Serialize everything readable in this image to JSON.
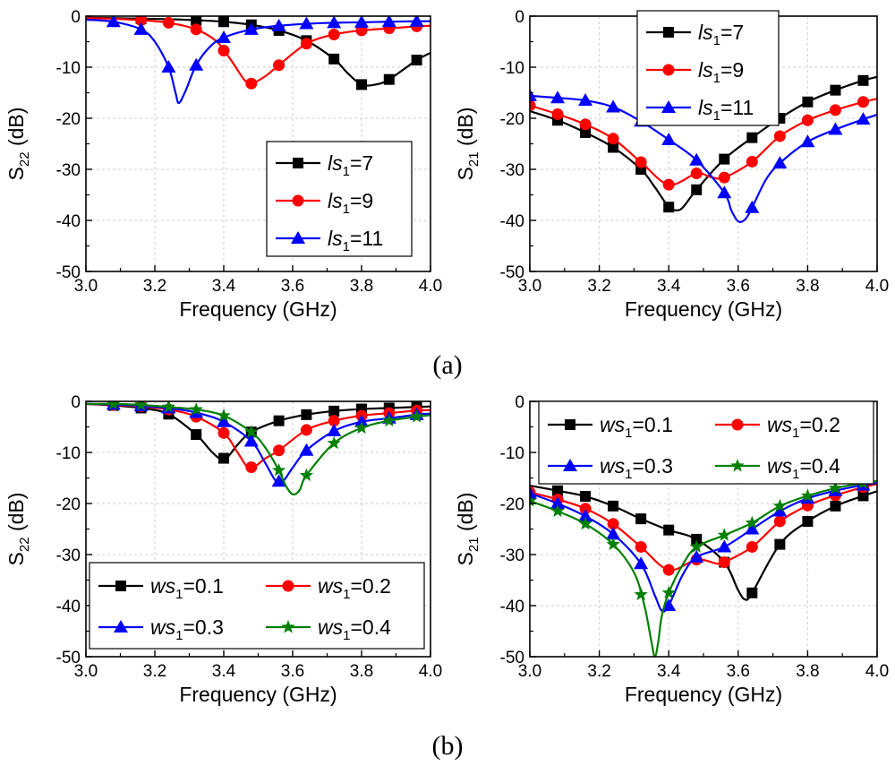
{
  "figure": {
    "caption_a": "(a)",
    "caption_b": "(b)"
  },
  "chart_data": [
    {
      "id": "a-left",
      "type": "line",
      "title": "",
      "xlabel": "Frequency (GHz)",
      "ylabel": "S22 (dB)",
      "ylabel_main": "S",
      "ylabel_sub": "22",
      "ylabel_unit": " (dB)",
      "xlim": [
        3.0,
        4.0
      ],
      "ylim": [
        -50,
        0
      ],
      "xticks": [
        "3.0",
        "3.2",
        "3.4",
        "3.6",
        "3.8",
        "4.0"
      ],
      "yticks": [
        "0",
        "-10",
        "-20",
        "-30",
        "-40",
        "-50"
      ],
      "grid": true,
      "legend_position": "right",
      "legend_layout": "column",
      "series": [
        {
          "name": "ls1=7",
          "label_var": "ls",
          "label_sub": "1",
          "label_val": "=7",
          "color": "#000000",
          "marker": "square",
          "x": [
            3.0,
            3.08,
            3.16,
            3.24,
            3.32,
            3.4,
            3.48,
            3.56,
            3.64,
            3.72,
            3.76,
            3.8,
            3.84,
            3.88,
            3.96,
            4.0
          ],
          "y": [
            -0.3,
            -0.4,
            -0.5,
            -0.6,
            -0.8,
            -1.1,
            -1.7,
            -2.8,
            -4.8,
            -8.4,
            -11.2,
            -13.4,
            -13.4,
            -12.4,
            -8.6,
            -7.2
          ],
          "markers_x": [
            3.16,
            3.32,
            3.4,
            3.48,
            3.56,
            3.64,
            3.72,
            3.8,
            3.88,
            3.96
          ]
        },
        {
          "name": "ls1=9",
          "label_var": "ls",
          "label_sub": "1",
          "label_val": "=9",
          "color": "#ff0000",
          "marker": "circle",
          "x": [
            3.0,
            3.08,
            3.16,
            3.24,
            3.32,
            3.38,
            3.42,
            3.46,
            3.48,
            3.52,
            3.56,
            3.64,
            3.72,
            3.8,
            3.88,
            3.96,
            4.0
          ],
          "y": [
            -0.4,
            -0.5,
            -0.8,
            -1.3,
            -2.6,
            -5.0,
            -8.5,
            -12.5,
            -13.2,
            -11.8,
            -9.6,
            -5.4,
            -3.6,
            -2.8,
            -2.4,
            -2.0,
            -1.9
          ],
          "markers_x": [
            3.16,
            3.24,
            3.32,
            3.4,
            3.48,
            3.56,
            3.64,
            3.72,
            3.8,
            3.88,
            3.96
          ]
        },
        {
          "name": "ls1=11",
          "label_var": "ls",
          "label_sub": "1",
          "label_val": "=11",
          "color": "#0000ff",
          "marker": "triangle",
          "x": [
            3.0,
            3.08,
            3.16,
            3.2,
            3.24,
            3.26,
            3.27,
            3.29,
            3.32,
            3.36,
            3.4,
            3.48,
            3.56,
            3.64,
            3.72,
            3.8,
            3.88,
            3.96,
            4.0
          ],
          "y": [
            -0.7,
            -1.1,
            -2.6,
            -5.0,
            -10.0,
            -15.0,
            -17.0,
            -14.5,
            -9.6,
            -6.0,
            -4.2,
            -2.6,
            -1.9,
            -1.5,
            -1.3,
            -1.2,
            -1.1,
            -1.0,
            -1.0
          ],
          "markers_x": [
            3.08,
            3.16,
            3.24,
            3.32,
            3.4,
            3.48,
            3.56,
            3.64,
            3.72,
            3.8,
            3.88,
            3.96
          ]
        }
      ]
    },
    {
      "id": "a-right",
      "type": "line",
      "title": "",
      "xlabel": "Frequency (GHz)",
      "ylabel": "S21 (dB)",
      "ylabel_main": "S",
      "ylabel_sub": "21",
      "ylabel_unit": " (dB)",
      "xlim": [
        3.0,
        4.0
      ],
      "ylim": [
        -50,
        0
      ],
      "xticks": [
        "3.0",
        "3.2",
        "3.4",
        "3.6",
        "3.8",
        "4.0"
      ],
      "yticks": [
        "0",
        "-10",
        "-20",
        "-30",
        "-40",
        "-50"
      ],
      "grid": true,
      "legend_position": "top-left",
      "legend_layout": "column",
      "series": [
        {
          "name": "ls1=7",
          "label_var": "ls",
          "label_sub": "1",
          "label_val": "=7",
          "color": "#000000",
          "marker": "square",
          "x": [
            3.0,
            3.08,
            3.16,
            3.24,
            3.32,
            3.36,
            3.4,
            3.42,
            3.44,
            3.48,
            3.56,
            3.64,
            3.72,
            3.8,
            3.88,
            3.96,
            4.0
          ],
          "y": [
            -18.6,
            -20.4,
            -22.8,
            -25.7,
            -30.0,
            -33.5,
            -37.4,
            -38.0,
            -37.5,
            -34.0,
            -28.0,
            -23.8,
            -20.0,
            -16.8,
            -14.5,
            -12.6,
            -11.9
          ],
          "markers_x": [
            3.08,
            3.16,
            3.24,
            3.32,
            3.4,
            3.48,
            3.56,
            3.64,
            3.72,
            3.8,
            3.88,
            3.96
          ]
        },
        {
          "name": "ls1=9",
          "label_var": "ls",
          "label_sub": "1",
          "label_val": "=9",
          "color": "#ff0000",
          "marker": "circle",
          "x": [
            3.0,
            3.08,
            3.16,
            3.24,
            3.32,
            3.4,
            3.48,
            3.52,
            3.56,
            3.64,
            3.72,
            3.8,
            3.88,
            3.96,
            4.0
          ],
          "y": [
            -17.5,
            -19.2,
            -21.2,
            -24.0,
            -28.6,
            -33.0,
            -30.8,
            -31.5,
            -31.6,
            -28.5,
            -23.5,
            -20.4,
            -18.4,
            -16.8,
            -16.2
          ],
          "markers_x": [
            3.0,
            3.08,
            3.16,
            3.24,
            3.32,
            3.4,
            3.48,
            3.56,
            3.64,
            3.72,
            3.8,
            3.88,
            3.96
          ]
        },
        {
          "name": "ls1=11",
          "label_var": "ls",
          "label_sub": "1",
          "label_val": "=11",
          "color": "#0000ff",
          "marker": "triangle",
          "x": [
            3.0,
            3.08,
            3.16,
            3.24,
            3.32,
            3.4,
            3.48,
            3.56,
            3.58,
            3.6,
            3.62,
            3.64,
            3.68,
            3.72,
            3.8,
            3.88,
            3.96,
            4.0
          ],
          "y": [
            -15.6,
            -16.0,
            -16.5,
            -17.8,
            -20.6,
            -24.2,
            -28.2,
            -34.6,
            -38.0,
            -40.2,
            -39.8,
            -37.5,
            -32.0,
            -28.8,
            -24.6,
            -22.2,
            -20.2,
            -19.3
          ],
          "markers_x": [
            3.0,
            3.08,
            3.16,
            3.24,
            3.32,
            3.4,
            3.48,
            3.56,
            3.64,
            3.72,
            3.8,
            3.88,
            3.96
          ]
        }
      ]
    },
    {
      "id": "b-left",
      "type": "line",
      "title": "",
      "xlabel": "Frequency (GHz)",
      "ylabel": "S22 (dB)",
      "ylabel_main": "S",
      "ylabel_sub": "22",
      "ylabel_unit": " (dB)",
      "xlim": [
        3.0,
        4.0
      ],
      "ylim": [
        -50,
        0
      ],
      "xticks": [
        "3.0",
        "3.2",
        "3.4",
        "3.6",
        "3.8",
        "4.0"
      ],
      "yticks": [
        "0",
        "-10",
        "-20",
        "-30",
        "-40",
        "-50"
      ],
      "grid": true,
      "legend_position": "bottom",
      "legend_layout": "grid-2col",
      "series": [
        {
          "name": "ws1=0.1",
          "label_var": "ws",
          "label_sub": "1",
          "label_val": "=0.1",
          "color": "#000000",
          "marker": "square",
          "x": [
            3.0,
            3.08,
            3.16,
            3.24,
            3.32,
            3.36,
            3.39,
            3.41,
            3.44,
            3.48,
            3.56,
            3.64,
            3.72,
            3.8,
            3.88,
            3.96,
            4.0
          ],
          "y": [
            -0.5,
            -0.8,
            -1.3,
            -2.5,
            -6.5,
            -9.5,
            -11.3,
            -11.0,
            -8.5,
            -6.0,
            -3.8,
            -2.6,
            -1.9,
            -1.5,
            -1.3,
            -1.1,
            -1.0
          ],
          "markers_x": [
            3.08,
            3.16,
            3.24,
            3.32,
            3.4,
            3.48,
            3.56,
            3.64,
            3.72,
            3.8,
            3.88,
            3.96
          ]
        },
        {
          "name": "ws1=0.2",
          "label_var": "ws",
          "label_sub": "1",
          "label_val": "=0.2",
          "color": "#ff0000",
          "marker": "circle",
          "x": [
            3.0,
            3.08,
            3.16,
            3.24,
            3.32,
            3.4,
            3.44,
            3.47,
            3.49,
            3.52,
            3.56,
            3.64,
            3.72,
            3.8,
            3.88,
            3.96,
            4.0
          ],
          "y": [
            -0.5,
            -0.7,
            -1.0,
            -1.6,
            -3.0,
            -6.2,
            -10.0,
            -13.0,
            -12.8,
            -11.2,
            -9.6,
            -5.6,
            -3.8,
            -2.8,
            -2.3,
            -1.8,
            -1.7
          ],
          "markers_x": [
            3.08,
            3.16,
            3.24,
            3.32,
            3.4,
            3.48,
            3.56,
            3.64,
            3.72,
            3.8,
            3.88,
            3.96
          ]
        },
        {
          "name": "ws1=0.3",
          "label_var": "ws",
          "label_sub": "1",
          "label_val": "=0.3",
          "color": "#0000ff",
          "marker": "triangle",
          "x": [
            3.0,
            3.08,
            3.16,
            3.24,
            3.32,
            3.4,
            3.48,
            3.52,
            3.55,
            3.57,
            3.6,
            3.64,
            3.72,
            3.8,
            3.88,
            3.96,
            4.0
          ],
          "y": [
            -0.5,
            -0.6,
            -0.9,
            -1.3,
            -2.2,
            -4.0,
            -7.8,
            -12.0,
            -15.5,
            -15.8,
            -13.0,
            -9.6,
            -5.8,
            -4.0,
            -3.3,
            -2.6,
            -2.4
          ],
          "markers_x": [
            3.08,
            3.16,
            3.24,
            3.32,
            3.4,
            3.48,
            3.56,
            3.64,
            3.72,
            3.8,
            3.88,
            3.96
          ]
        },
        {
          "name": "ws1=0.4",
          "label_var": "ws",
          "label_sub": "1",
          "label_val": "=0.4",
          "color": "#008000",
          "marker": "star",
          "x": [
            3.0,
            3.08,
            3.16,
            3.24,
            3.32,
            3.4,
            3.48,
            3.52,
            3.56,
            3.58,
            3.6,
            3.62,
            3.64,
            3.72,
            3.8,
            3.88,
            3.96,
            4.0
          ],
          "y": [
            -0.5,
            -0.5,
            -0.7,
            -1.1,
            -1.6,
            -2.8,
            -6.0,
            -9.0,
            -13.5,
            -16.5,
            -18.2,
            -17.4,
            -14.5,
            -8.2,
            -5.2,
            -3.8,
            -3.0,
            -2.7
          ],
          "markers_x": [
            3.08,
            3.16,
            3.24,
            3.32,
            3.4,
            3.48,
            3.56,
            3.64,
            3.72,
            3.8,
            3.88,
            3.96
          ]
        }
      ]
    },
    {
      "id": "b-right",
      "type": "line",
      "title": "",
      "xlabel": "Frequency (GHz)",
      "ylabel": "S21 (dB)",
      "ylabel_main": "S",
      "ylabel_sub": "21",
      "ylabel_unit": " (dB)",
      "xlim": [
        3.0,
        4.0
      ],
      "ylim": [
        -50,
        0
      ],
      "xticks": [
        "3.0",
        "3.2",
        "3.4",
        "3.6",
        "3.8",
        "4.0"
      ],
      "yticks": [
        "0",
        "-10",
        "-20",
        "-30",
        "-40",
        "-50"
      ],
      "grid": true,
      "legend_position": "top",
      "legend_layout": "grid-2col",
      "series": [
        {
          "name": "ws1=0.1",
          "label_var": "ws",
          "label_sub": "1",
          "label_val": "=0.1",
          "color": "#000000",
          "marker": "square",
          "x": [
            3.0,
            3.08,
            3.16,
            3.24,
            3.32,
            3.4,
            3.48,
            3.56,
            3.6,
            3.62,
            3.64,
            3.72,
            3.8,
            3.88,
            3.96,
            4.0
          ],
          "y": [
            -16.5,
            -17.5,
            -18.6,
            -20.5,
            -23.0,
            -25.2,
            -27.0,
            -31.5,
            -37.0,
            -38.8,
            -37.5,
            -28.0,
            -23.5,
            -20.5,
            -18.5,
            -17.6
          ],
          "markers_x": [
            3.08,
            3.16,
            3.24,
            3.32,
            3.4,
            3.48,
            3.56,
            3.64,
            3.72,
            3.8,
            3.88,
            3.96
          ]
        },
        {
          "name": "ws1=0.2",
          "label_var": "ws",
          "label_sub": "1",
          "label_val": "=0.2",
          "color": "#ff0000",
          "marker": "circle",
          "x": [
            3.0,
            3.08,
            3.16,
            3.24,
            3.32,
            3.4,
            3.48,
            3.54,
            3.56,
            3.64,
            3.72,
            3.8,
            3.88,
            3.96,
            4.0
          ],
          "y": [
            -17.8,
            -19.2,
            -21.0,
            -24.0,
            -28.5,
            -33.0,
            -31.0,
            -31.8,
            -31.5,
            -28.5,
            -23.5,
            -20.4,
            -18.4,
            -16.8,
            -16.2
          ],
          "markers_x": [
            3.0,
            3.08,
            3.16,
            3.24,
            3.32,
            3.4,
            3.48,
            3.56,
            3.64,
            3.72,
            3.8,
            3.88,
            3.96
          ]
        },
        {
          "name": "ws1=0.3",
          "label_var": "ws",
          "label_sub": "1",
          "label_val": "=0.3",
          "color": "#0000ff",
          "marker": "triangle",
          "x": [
            3.0,
            3.08,
            3.16,
            3.24,
            3.32,
            3.36,
            3.38,
            3.4,
            3.44,
            3.48,
            3.56,
            3.64,
            3.72,
            3.8,
            3.88,
            3.96,
            4.0
          ],
          "y": [
            -18.0,
            -20.0,
            -22.5,
            -26.0,
            -31.8,
            -38.0,
            -41.0,
            -40.0,
            -34.0,
            -30.5,
            -28.5,
            -25.0,
            -21.5,
            -19.0,
            -17.5,
            -16.4,
            -16.0
          ],
          "markers_x": [
            3.0,
            3.08,
            3.16,
            3.24,
            3.32,
            3.4,
            3.48,
            3.56,
            3.64,
            3.72,
            3.8,
            3.88,
            3.96
          ]
        },
        {
          "name": "ws1=0.4",
          "label_var": "ws",
          "label_sub": "1",
          "label_val": "=0.4",
          "color": "#008000",
          "marker": "star",
          "x": [
            3.0,
            3.08,
            3.16,
            3.24,
            3.3,
            3.33,
            3.35,
            3.36,
            3.37,
            3.38,
            3.4,
            3.44,
            3.48,
            3.56,
            3.64,
            3.72,
            3.8,
            3.88,
            3.96,
            4.0
          ],
          "y": [
            -19.5,
            -21.5,
            -24.0,
            -28.0,
            -33.5,
            -40.0,
            -47.0,
            -50.0,
            -47.0,
            -42.0,
            -37.5,
            -32.0,
            -28.5,
            -26.2,
            -23.8,
            -20.5,
            -18.5,
            -17.0,
            -16.0,
            -15.6
          ],
          "markers_x": [
            3.0,
            3.08,
            3.16,
            3.24,
            3.32,
            3.4,
            3.48,
            3.56,
            3.64,
            3.72,
            3.8,
            3.88,
            3.96
          ]
        }
      ]
    }
  ]
}
